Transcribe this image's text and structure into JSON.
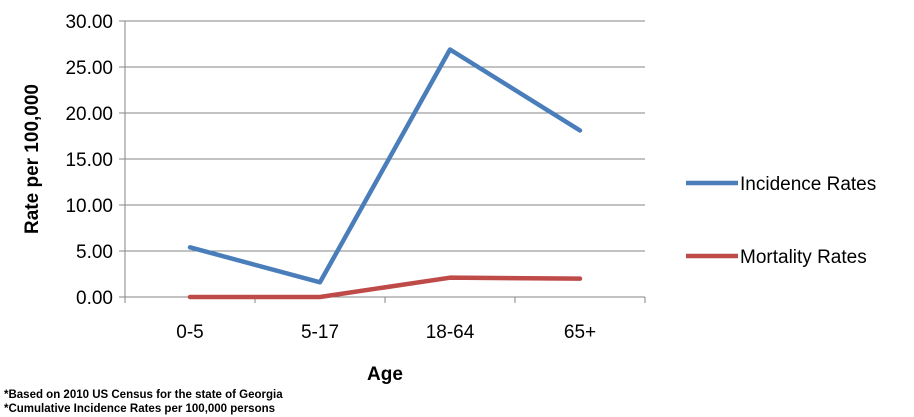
{
  "chart_data": {
    "type": "line",
    "title": "",
    "xlabel": "Age",
    "ylabel": "Rate per 100,000",
    "categories": [
      "0-5",
      "5-17",
      "18-64",
      "65+"
    ],
    "ylim": [
      0,
      30
    ],
    "yticks": [
      "0.00",
      "5.00",
      "10.00",
      "15.00",
      "20.00",
      "25.00",
      "30.00"
    ],
    "grid": true,
    "legend_position": "right",
    "series": [
      {
        "name": "Incidence Rates",
        "color": "#4a7ebb",
        "values": [
          5.4,
          1.6,
          26.9,
          18.1
        ]
      },
      {
        "name": "Mortality Rates",
        "color": "#be4b48",
        "values": [
          0.0,
          0.0,
          2.1,
          2.0
        ]
      }
    ]
  },
  "footnotes": [
    "*Based on 2010 US Census for the state of Georgia",
    "*Cumulative Incidence Rates per 100,000 persons"
  ]
}
